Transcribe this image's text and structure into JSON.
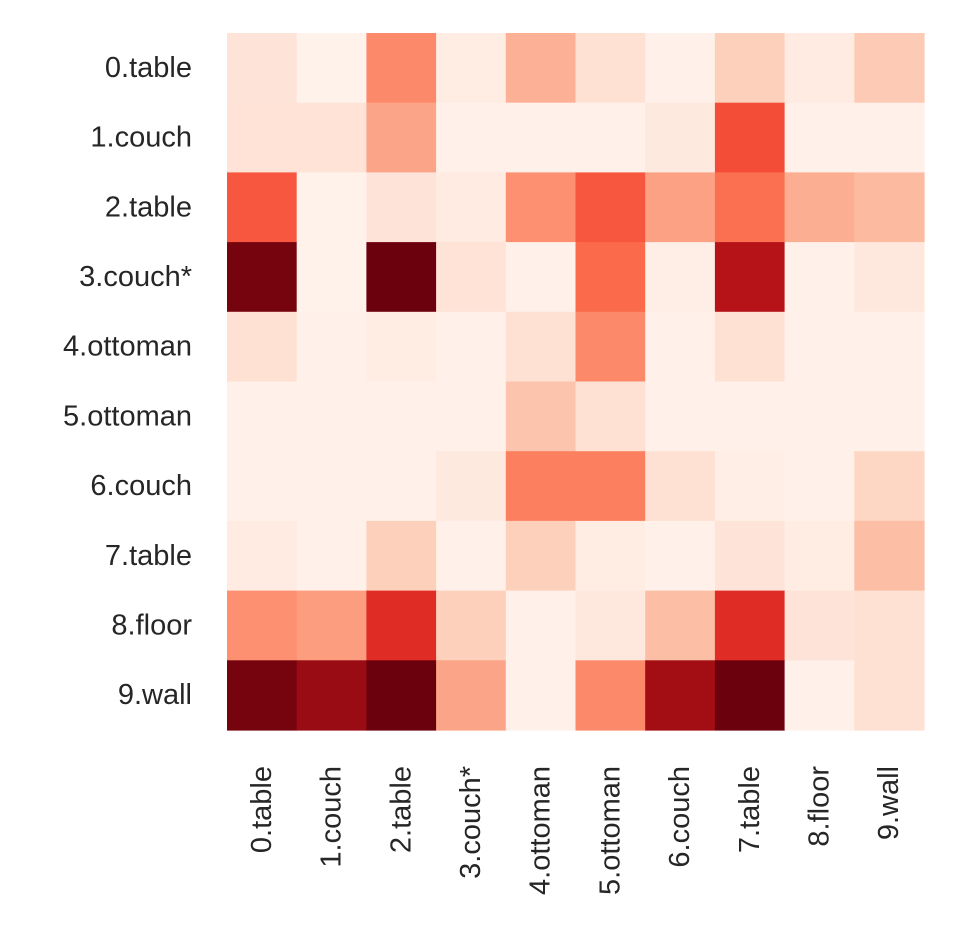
{
  "chart_data": {
    "type": "heatmap",
    "title": "",
    "xlabel": "",
    "ylabel": "",
    "grid": false,
    "legend": "none",
    "colormap": "Reds",
    "vmin": 0,
    "vmax": 1,
    "row_labels": [
      "0.table",
      "1.couch",
      "2.table",
      "3.couch*",
      "4.ottoman",
      "5.ottoman",
      "6.couch",
      "7.table",
      "8.floor",
      "9.wall"
    ],
    "col_labels": [
      "0.table",
      "1.couch",
      "2.table",
      "3.couch*",
      "4.ottoman",
      "5.ottoman",
      "6.couch",
      "7.table",
      "8.floor",
      "9.wall"
    ],
    "values": [
      [
        0.1,
        0.02,
        0.4,
        0.05,
        0.28,
        0.12,
        0.03,
        0.18,
        0.06,
        0.2
      ],
      [
        0.11,
        0.11,
        0.32,
        0.03,
        0.03,
        0.03,
        0.07,
        0.58,
        0.03,
        0.03
      ],
      [
        0.55,
        0.02,
        0.1,
        0.06,
        0.38,
        0.55,
        0.33,
        0.48,
        0.29,
        0.25
      ],
      [
        0.97,
        0.02,
        0.99,
        0.11,
        0.03,
        0.5,
        0.04,
        0.82,
        0.03,
        0.08
      ],
      [
        0.12,
        0.03,
        0.05,
        0.03,
        0.12,
        0.4,
        0.03,
        0.12,
        0.03,
        0.03
      ],
      [
        0.03,
        0.03,
        0.03,
        0.03,
        0.22,
        0.12,
        0.03,
        0.03,
        0.03,
        0.03
      ],
      [
        0.03,
        0.03,
        0.03,
        0.07,
        0.43,
        0.43,
        0.12,
        0.04,
        0.03,
        0.16
      ],
      [
        0.06,
        0.03,
        0.18,
        0.03,
        0.18,
        0.05,
        0.03,
        0.1,
        0.05,
        0.24
      ],
      [
        0.38,
        0.34,
        0.68,
        0.18,
        0.03,
        0.08,
        0.24,
        0.68,
        0.1,
        0.12
      ],
      [
        0.97,
        0.9,
        0.99,
        0.32,
        0.03,
        0.4,
        0.88,
        0.99,
        0.03,
        0.12
      ]
    ]
  }
}
